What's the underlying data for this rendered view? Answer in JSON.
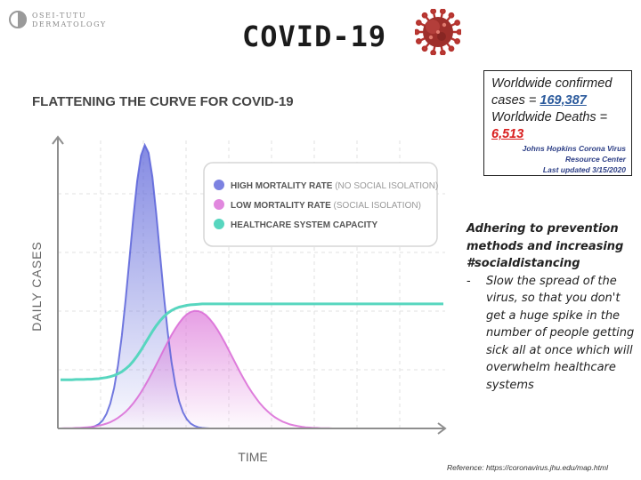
{
  "header": {
    "logo": {
      "line1": "OSEI-TUTU",
      "line2": "DERMATOLOGY"
    },
    "title": "COVID-19",
    "image_icon": "coronavirus-icon"
  },
  "stats": {
    "confirmed_label_1": "Worldwide confirmed",
    "confirmed_label_2": "cases = ",
    "confirmed_value": "169,387",
    "confirmed_color": "#2b5a9c",
    "deaths_label": "Worldwide Deaths =",
    "deaths_value": "6,513",
    "deaths_color": "#d91e1e",
    "source_1": "Johns Hopkins Corona Virus",
    "source_2": "Resource Center",
    "updated": "Last updated 3/15/2020"
  },
  "notes": {
    "heading_1": "Adhering to prevention",
    "heading_2": "methods and increasing",
    "heading_3": "#socialdistancing",
    "dash": "-",
    "bullet": "Slow the spread of the virus, so that you don't get a huge spike in the number of people getting sick all at once which will overwhelm healthcare systems"
  },
  "reference": "Reference: https://coronavirus.jhu.edu/map.html",
  "chart_data": {
    "type": "area",
    "title": "FLATTENING THE CURVE FOR COVID-19",
    "xlabel": "TIME",
    "ylabel": "DAILY CASES",
    "legend_position": "top-right",
    "grid": true,
    "x": [
      0,
      1,
      2,
      3,
      4,
      5,
      6,
      7,
      8,
      9,
      10,
      11,
      12,
      13,
      14,
      15,
      16,
      17,
      18,
      19,
      20,
      21,
      22,
      23,
      24,
      25,
      26,
      27,
      28,
      29,
      30,
      31,
      32,
      33,
      34,
      35,
      36,
      37,
      38,
      39,
      40,
      41,
      42,
      43,
      44,
      45,
      46,
      47,
      48,
      49,
      50,
      51,
      52,
      53,
      54,
      55,
      56,
      57,
      58,
      59,
      60,
      61,
      62,
      63,
      64,
      65,
      66,
      67,
      68,
      69,
      70,
      71,
      72,
      73,
      74,
      75,
      76,
      77,
      78,
      79,
      80,
      81,
      82,
      83,
      84,
      85,
      86,
      87,
      88,
      89,
      90,
      91,
      92,
      93,
      94,
      95,
      96,
      97,
      98,
      99,
      100
    ],
    "ylim": [
      0,
      100
    ],
    "series": [
      {
        "name": "HIGH MORTALITY RATE",
        "note": "(NO SOCIAL ISOLATION)",
        "color": "#5b63d9",
        "values": [
          0.0,
          0.0,
          0.0,
          0.0,
          0.0,
          0.1,
          0.1,
          0.2,
          0.4,
          0.8,
          1.5,
          2.8,
          5.1,
          8.7,
          14.2,
          22.0,
          32.3,
          45.0,
          59.2,
          73.6,
          86.3,
          95.3,
          99.0,
          96.3,
          87.9,
          75.1,
          60.7,
          46.4,
          33.6,
          23.1,
          15.1,
          9.4,
          5.6,
          3.2,
          1.7,
          0.9,
          0.4,
          0.2,
          0.1,
          0.0,
          0.0,
          0.0,
          0.0,
          0.0,
          0.0,
          0.0,
          0.0,
          0.0,
          0.0,
          0.0,
          0.0,
          0.0,
          0.0,
          0.0,
          0.0,
          0.0,
          0.0,
          0.0,
          0.0,
          0.0,
          0.0,
          0.0,
          0.0,
          0.0,
          0.0,
          0.0,
          0.0,
          0.0,
          0.0,
          0.0,
          0.0,
          0.0,
          0.0,
          0.0,
          0.0,
          0.0,
          0.0,
          0.0,
          0.0,
          0.0,
          0.0,
          0.0,
          0.0,
          0.0,
          0.0,
          0.0,
          0.0,
          0.0,
          0.0,
          0.0,
          0.0,
          0.0,
          0.0,
          0.0,
          0.0,
          0.0,
          0.0,
          0.0,
          0.0,
          0.0,
          0.0
        ]
      },
      {
        "name": "LOW MORTALITY RATE",
        "note": "(SOCIAL ISOLATION)",
        "color": "#d96ad6",
        "values": [
          0.0,
          0.1,
          0.1,
          0.1,
          0.2,
          0.2,
          0.3,
          0.4,
          0.5,
          0.7,
          1.0,
          1.3,
          1.7,
          2.2,
          2.9,
          3.7,
          4.7,
          5.8,
          7.2,
          8.8,
          10.6,
          12.6,
          14.8,
          17.2,
          19.7,
          22.3,
          24.9,
          27.6,
          30.2,
          32.7,
          34.9,
          36.9,
          38.6,
          39.9,
          40.7,
          41.1,
          41.0,
          40.5,
          39.6,
          38.2,
          36.5,
          34.5,
          32.2,
          29.8,
          27.2,
          24.6,
          22.0,
          19.4,
          17.0,
          14.7,
          12.6,
          10.7,
          8.9,
          7.4,
          6.1,
          4.9,
          3.9,
          3.1,
          2.4,
          1.9,
          1.4,
          1.1,
          0.8,
          0.6,
          0.4,
          0.3,
          0.2,
          0.2,
          0.1,
          0.1,
          0.1,
          0.0,
          0.0,
          0.0,
          0.0,
          0.0,
          0.0,
          0.0,
          0.0,
          0.0,
          0.0,
          0.0,
          0.0,
          0.0,
          0.0,
          0.0,
          0.0,
          0.0,
          0.0,
          0.0,
          0.0,
          0.0,
          0.0,
          0.0,
          0.0,
          0.0,
          0.0,
          0.0,
          0.0,
          0.0,
          0.0
        ]
      },
      {
        "name": "HEALTHCARE SYSTEM CAPACITY",
        "note": "",
        "color": "#57d6bf",
        "values": [
          17.0,
          17.0,
          17.0,
          17.0,
          17.1,
          17.1,
          17.1,
          17.2,
          17.2,
          17.3,
          17.4,
          17.6,
          17.8,
          18.1,
          18.5,
          19.1,
          19.8,
          20.8,
          22.0,
          23.5,
          25.3,
          27.3,
          29.5,
          31.7,
          33.9,
          35.9,
          37.6,
          39.1,
          40.3,
          41.2,
          41.9,
          42.4,
          42.7,
          43.0,
          43.2,
          43.3,
          43.4,
          43.5,
          43.5,
          43.5,
          43.5,
          43.5,
          43.5,
          43.5,
          43.5,
          43.5,
          43.5,
          43.5,
          43.5,
          43.5,
          43.5,
          43.5,
          43.5,
          43.5,
          43.5,
          43.5,
          43.5,
          43.5,
          43.5,
          43.5,
          43.5,
          43.5,
          43.5,
          43.5,
          43.5,
          43.5,
          43.5,
          43.5,
          43.5,
          43.5,
          43.5,
          43.5,
          43.5,
          43.5,
          43.5,
          43.5,
          43.5,
          43.5,
          43.5,
          43.5,
          43.5,
          43.5,
          43.5,
          43.5,
          43.5,
          43.5,
          43.5,
          43.5,
          43.5,
          43.5,
          43.5,
          43.5,
          43.5,
          43.5,
          43.5,
          43.5,
          43.5,
          43.5,
          43.5,
          43.5,
          43.5
        ]
      }
    ]
  }
}
